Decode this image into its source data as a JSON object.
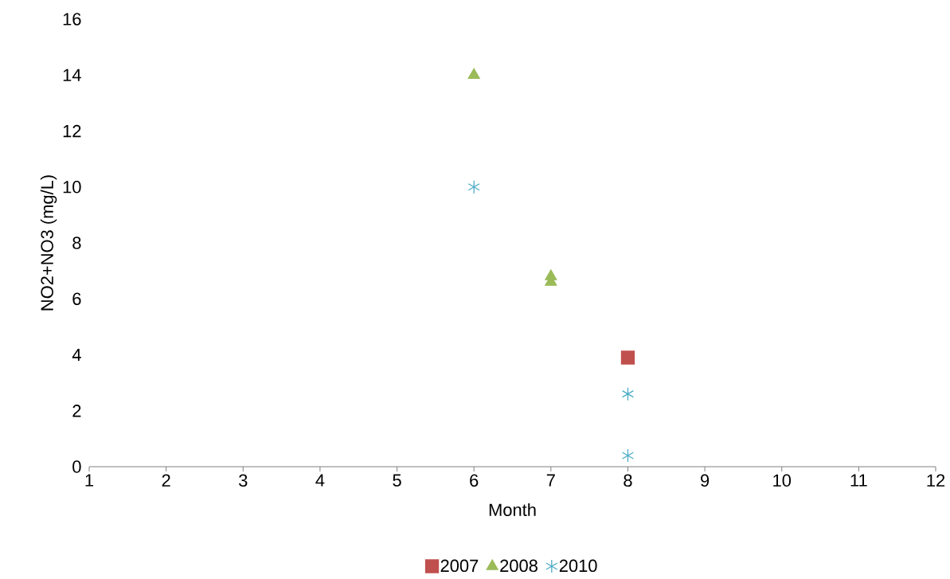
{
  "chart_data": {
    "type": "scatter",
    "xlabel": "Month",
    "ylabel": "NO2+NO3 (mg/L)",
    "xlim": [
      1,
      12
    ],
    "xticks": [
      1,
      2,
      3,
      4,
      5,
      6,
      7,
      8,
      9,
      10,
      11,
      12
    ],
    "ylim": [
      0,
      16
    ],
    "yticks": [
      0,
      2,
      4,
      6,
      8,
      10,
      12,
      14,
      16
    ],
    "grid": false,
    "legend": "bottom",
    "series": [
      {
        "name": "2007",
        "color": "#c0504d",
        "marker": "square",
        "x": [
          8
        ],
        "values": [
          3.9
        ]
      },
      {
        "name": "2008",
        "color": "#9bbb59",
        "marker": "triangle",
        "x": [
          6,
          7,
          7
        ],
        "values": [
          14.0,
          6.8,
          6.6
        ]
      },
      {
        "name": "2010",
        "color": "#4bacc6",
        "marker": "cross",
        "x": [
          6,
          8,
          8
        ],
        "values": [
          10.0,
          2.6,
          0.4
        ]
      }
    ]
  }
}
